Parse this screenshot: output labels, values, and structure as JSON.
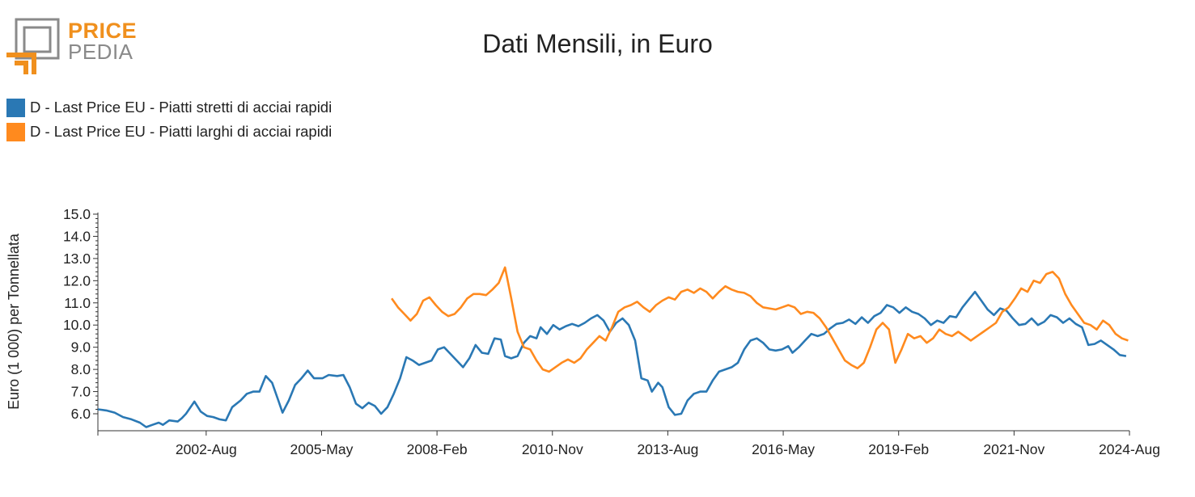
{
  "logo": {
    "line1": "PRICE",
    "line2": "PEDIA"
  },
  "colors": {
    "blue": "#2a78b4",
    "orange": "#ff8a1e",
    "axis": "#333333",
    "logo_orange": "#f0901e",
    "logo_gray": "#8a8a8a"
  },
  "chart_data": {
    "type": "line",
    "title": "Dati Mensili, in Euro",
    "ylabel": "Euro (1 000) per Tonnellata",
    "xlabel": "",
    "ylim": [
      5.25,
      15.05
    ],
    "yticks": [
      "6.0",
      "7.0",
      "8.0",
      "9.0",
      "10.0",
      "11.0",
      "12.0",
      "13.0",
      "14.0",
      "15.0"
    ],
    "xrange": [
      2000.0,
      2024.58
    ],
    "xticks": [
      {
        "label": "2002-Aug",
        "x": 2002.58
      },
      {
        "label": "2005-May",
        "x": 2005.33
      },
      {
        "label": "2008-Feb",
        "x": 2008.08
      },
      {
        "label": "2010-Nov",
        "x": 2010.83
      },
      {
        "label": "2013-Aug",
        "x": 2013.58
      },
      {
        "label": "2016-May",
        "x": 2016.33
      },
      {
        "label": "2019-Feb",
        "x": 2019.08
      },
      {
        "label": "2021-Nov",
        "x": 2021.83
      },
      {
        "label": "2024-Aug",
        "x": 2024.58
      }
    ],
    "legend_position": "top-left",
    "series": [
      {
        "name": "D - Last Price EU - Piatti stretti di acciai rapidi",
        "color": "#2a78b4",
        "points": [
          [
            2000.0,
            6.2
          ],
          [
            2000.2,
            6.15
          ],
          [
            2000.4,
            6.05
          ],
          [
            2000.6,
            5.85
          ],
          [
            2000.8,
            5.75
          ],
          [
            2001.0,
            5.6
          ],
          [
            2001.15,
            5.4
          ],
          [
            2001.3,
            5.5
          ],
          [
            2001.45,
            5.6
          ],
          [
            2001.55,
            5.5
          ],
          [
            2001.7,
            5.7
          ],
          [
            2001.9,
            5.65
          ],
          [
            2002.0,
            5.8
          ],
          [
            2002.1,
            6.0
          ],
          [
            2002.3,
            6.55
          ],
          [
            2002.45,
            6.1
          ],
          [
            2002.6,
            5.9
          ],
          [
            2002.75,
            5.85
          ],
          [
            2002.9,
            5.75
          ],
          [
            2003.05,
            5.7
          ],
          [
            2003.2,
            6.3
          ],
          [
            2003.4,
            6.6
          ],
          [
            2003.55,
            6.9
          ],
          [
            2003.7,
            7.0
          ],
          [
            2003.85,
            7.0
          ],
          [
            2004.0,
            7.7
          ],
          [
            2004.15,
            7.4
          ],
          [
            2004.3,
            6.6
          ],
          [
            2004.4,
            6.05
          ],
          [
            2004.55,
            6.6
          ],
          [
            2004.7,
            7.3
          ],
          [
            2004.85,
            7.6
          ],
          [
            2005.0,
            7.95
          ],
          [
            2005.15,
            7.6
          ],
          [
            2005.35,
            7.6
          ],
          [
            2005.5,
            7.75
          ],
          [
            2005.7,
            7.7
          ],
          [
            2005.85,
            7.75
          ],
          [
            2006.0,
            7.2
          ],
          [
            2006.15,
            6.45
          ],
          [
            2006.3,
            6.25
          ],
          [
            2006.45,
            6.5
          ],
          [
            2006.6,
            6.35
          ],
          [
            2006.75,
            6.0
          ],
          [
            2006.9,
            6.3
          ],
          [
            2007.05,
            6.9
          ],
          [
            2007.2,
            7.6
          ],
          [
            2007.35,
            8.55
          ],
          [
            2007.5,
            8.4
          ],
          [
            2007.65,
            8.2
          ],
          [
            2007.8,
            8.3
          ],
          [
            2007.95,
            8.4
          ],
          [
            2008.1,
            8.9
          ],
          [
            2008.25,
            9.0
          ],
          [
            2008.4,
            8.7
          ],
          [
            2008.55,
            8.4
          ],
          [
            2008.7,
            8.1
          ],
          [
            2008.85,
            8.5
          ],
          [
            2009.0,
            9.1
          ],
          [
            2009.15,
            8.75
          ],
          [
            2009.3,
            8.7
          ],
          [
            2009.45,
            9.4
          ],
          [
            2009.6,
            9.35
          ],
          [
            2009.7,
            8.6
          ],
          [
            2009.85,
            8.5
          ],
          [
            2010.0,
            8.6
          ],
          [
            2010.15,
            9.2
          ],
          [
            2010.3,
            9.5
          ],
          [
            2010.45,
            9.4
          ],
          [
            2010.55,
            9.9
          ],
          [
            2010.7,
            9.6
          ],
          [
            2010.85,
            10.0
          ],
          [
            2011.0,
            9.8
          ],
          [
            2011.15,
            9.95
          ],
          [
            2011.3,
            10.05
          ],
          [
            2011.45,
            9.95
          ],
          [
            2011.6,
            10.1
          ],
          [
            2011.75,
            10.3
          ],
          [
            2011.9,
            10.45
          ],
          [
            2012.05,
            10.2
          ],
          [
            2012.2,
            9.7
          ],
          [
            2012.35,
            10.1
          ],
          [
            2012.5,
            10.3
          ],
          [
            2012.65,
            10.0
          ],
          [
            2012.8,
            9.3
          ],
          [
            2012.95,
            7.6
          ],
          [
            2013.1,
            7.5
          ],
          [
            2013.2,
            7.0
          ],
          [
            2013.35,
            7.4
          ],
          [
            2013.45,
            7.2
          ],
          [
            2013.6,
            6.3
          ],
          [
            2013.75,
            5.95
          ],
          [
            2013.9,
            6.0
          ],
          [
            2014.05,
            6.6
          ],
          [
            2014.2,
            6.9
          ],
          [
            2014.35,
            7.0
          ],
          [
            2014.5,
            7.0
          ],
          [
            2014.65,
            7.5
          ],
          [
            2014.8,
            7.9
          ],
          [
            2014.95,
            8.0
          ],
          [
            2015.1,
            8.1
          ],
          [
            2015.25,
            8.3
          ],
          [
            2015.4,
            8.9
          ],
          [
            2015.55,
            9.3
          ],
          [
            2015.7,
            9.4
          ],
          [
            2015.85,
            9.2
          ],
          [
            2016.0,
            8.9
          ],
          [
            2016.15,
            8.85
          ],
          [
            2016.3,
            8.9
          ],
          [
            2016.45,
            9.05
          ],
          [
            2016.55,
            8.75
          ],
          [
            2016.7,
            9.0
          ],
          [
            2016.85,
            9.3
          ],
          [
            2017.0,
            9.6
          ],
          [
            2017.15,
            9.5
          ],
          [
            2017.3,
            9.6
          ],
          [
            2017.45,
            9.85
          ],
          [
            2017.6,
            10.05
          ],
          [
            2017.75,
            10.1
          ],
          [
            2017.9,
            10.25
          ],
          [
            2018.05,
            10.05
          ],
          [
            2018.2,
            10.35
          ],
          [
            2018.35,
            10.1
          ],
          [
            2018.5,
            10.4
          ],
          [
            2018.65,
            10.55
          ],
          [
            2018.8,
            10.9
          ],
          [
            2018.95,
            10.8
          ],
          [
            2019.1,
            10.55
          ],
          [
            2019.25,
            10.8
          ],
          [
            2019.4,
            10.6
          ],
          [
            2019.55,
            10.5
          ],
          [
            2019.7,
            10.3
          ],
          [
            2019.85,
            10.0
          ],
          [
            2020.0,
            10.2
          ],
          [
            2020.15,
            10.1
          ],
          [
            2020.3,
            10.4
          ],
          [
            2020.45,
            10.35
          ],
          [
            2020.6,
            10.8
          ],
          [
            2020.75,
            11.15
          ],
          [
            2020.9,
            11.5
          ],
          [
            2021.05,
            11.1
          ],
          [
            2021.2,
            10.7
          ],
          [
            2021.35,
            10.45
          ],
          [
            2021.5,
            10.75
          ],
          [
            2021.65,
            10.65
          ],
          [
            2021.8,
            10.3
          ],
          [
            2021.95,
            10.0
          ],
          [
            2022.1,
            10.05
          ],
          [
            2022.25,
            10.3
          ],
          [
            2022.4,
            10.0
          ],
          [
            2022.55,
            10.15
          ],
          [
            2022.7,
            10.45
          ],
          [
            2022.85,
            10.35
          ],
          [
            2023.0,
            10.1
          ],
          [
            2023.15,
            10.3
          ],
          [
            2023.3,
            10.05
          ],
          [
            2023.45,
            9.9
          ],
          [
            2023.6,
            9.1
          ],
          [
            2023.75,
            9.15
          ],
          [
            2023.9,
            9.3
          ],
          [
            2024.05,
            9.1
          ],
          [
            2024.2,
            8.9
          ],
          [
            2024.35,
            8.65
          ],
          [
            2024.5,
            8.6
          ]
        ]
      },
      {
        "name": "D - Last Price EU - Piatti larghi di acciai rapidi",
        "color": "#ff8a1e",
        "points": [
          [
            2007.0,
            11.2
          ],
          [
            2007.15,
            10.8
          ],
          [
            2007.3,
            10.5
          ],
          [
            2007.45,
            10.2
          ],
          [
            2007.6,
            10.5
          ],
          [
            2007.75,
            11.1
          ],
          [
            2007.9,
            11.25
          ],
          [
            2008.05,
            10.9
          ],
          [
            2008.2,
            10.6
          ],
          [
            2008.35,
            10.4
          ],
          [
            2008.5,
            10.5
          ],
          [
            2008.65,
            10.8
          ],
          [
            2008.8,
            11.2
          ],
          [
            2008.95,
            11.4
          ],
          [
            2009.1,
            11.4
          ],
          [
            2009.25,
            11.35
          ],
          [
            2009.4,
            11.6
          ],
          [
            2009.55,
            11.9
          ],
          [
            2009.7,
            12.6
          ],
          [
            2009.85,
            11.2
          ],
          [
            2010.0,
            9.7
          ],
          [
            2010.15,
            9.0
          ],
          [
            2010.3,
            8.9
          ],
          [
            2010.45,
            8.4
          ],
          [
            2010.6,
            8.0
          ],
          [
            2010.75,
            7.9
          ],
          [
            2010.9,
            8.1
          ],
          [
            2011.05,
            8.3
          ],
          [
            2011.2,
            8.45
          ],
          [
            2011.35,
            8.3
          ],
          [
            2011.5,
            8.5
          ],
          [
            2011.65,
            8.9
          ],
          [
            2011.8,
            9.2
          ],
          [
            2011.95,
            9.5
          ],
          [
            2012.1,
            9.3
          ],
          [
            2012.25,
            9.9
          ],
          [
            2012.4,
            10.6
          ],
          [
            2012.55,
            10.8
          ],
          [
            2012.7,
            10.9
          ],
          [
            2012.85,
            11.05
          ],
          [
            2013.0,
            10.8
          ],
          [
            2013.15,
            10.6
          ],
          [
            2013.3,
            10.9
          ],
          [
            2013.45,
            11.1
          ],
          [
            2013.6,
            11.25
          ],
          [
            2013.75,
            11.15
          ],
          [
            2013.9,
            11.5
          ],
          [
            2014.05,
            11.6
          ],
          [
            2014.2,
            11.45
          ],
          [
            2014.35,
            11.65
          ],
          [
            2014.5,
            11.5
          ],
          [
            2014.65,
            11.2
          ],
          [
            2014.8,
            11.5
          ],
          [
            2014.95,
            11.75
          ],
          [
            2015.1,
            11.6
          ],
          [
            2015.25,
            11.5
          ],
          [
            2015.4,
            11.45
          ],
          [
            2015.55,
            11.3
          ],
          [
            2015.7,
            11.0
          ],
          [
            2015.85,
            10.8
          ],
          [
            2016.0,
            10.75
          ],
          [
            2016.15,
            10.7
          ],
          [
            2016.3,
            10.8
          ],
          [
            2016.45,
            10.9
          ],
          [
            2016.6,
            10.8
          ],
          [
            2016.75,
            10.5
          ],
          [
            2016.9,
            10.6
          ],
          [
            2017.05,
            10.55
          ],
          [
            2017.2,
            10.3
          ],
          [
            2017.35,
            9.9
          ],
          [
            2017.5,
            9.4
          ],
          [
            2017.65,
            8.9
          ],
          [
            2017.8,
            8.4
          ],
          [
            2017.95,
            8.2
          ],
          [
            2018.1,
            8.05
          ],
          [
            2018.25,
            8.3
          ],
          [
            2018.4,
            9.0
          ],
          [
            2018.55,
            9.8
          ],
          [
            2018.7,
            10.1
          ],
          [
            2018.85,
            9.8
          ],
          [
            2019.0,
            8.3
          ],
          [
            2019.15,
            8.9
          ],
          [
            2019.3,
            9.6
          ],
          [
            2019.45,
            9.4
          ],
          [
            2019.6,
            9.5
          ],
          [
            2019.75,
            9.2
          ],
          [
            2019.9,
            9.4
          ],
          [
            2020.05,
            9.8
          ],
          [
            2020.2,
            9.6
          ],
          [
            2020.35,
            9.5
          ],
          [
            2020.5,
            9.7
          ],
          [
            2020.65,
            9.5
          ],
          [
            2020.8,
            9.3
          ],
          [
            2020.95,
            9.5
          ],
          [
            2021.1,
            9.7
          ],
          [
            2021.25,
            9.9
          ],
          [
            2021.4,
            10.1
          ],
          [
            2021.55,
            10.6
          ],
          [
            2021.7,
            10.8
          ],
          [
            2021.85,
            11.2
          ],
          [
            2022.0,
            11.65
          ],
          [
            2022.15,
            11.5
          ],
          [
            2022.3,
            12.0
          ],
          [
            2022.45,
            11.9
          ],
          [
            2022.6,
            12.3
          ],
          [
            2022.75,
            12.4
          ],
          [
            2022.9,
            12.1
          ],
          [
            2023.05,
            11.4
          ],
          [
            2023.2,
            10.9
          ],
          [
            2023.35,
            10.5
          ],
          [
            2023.5,
            10.1
          ],
          [
            2023.65,
            10.0
          ],
          [
            2023.8,
            9.8
          ],
          [
            2023.95,
            10.2
          ],
          [
            2024.1,
            10.0
          ],
          [
            2024.25,
            9.6
          ],
          [
            2024.4,
            9.4
          ],
          [
            2024.55,
            9.3
          ]
        ]
      }
    ]
  }
}
